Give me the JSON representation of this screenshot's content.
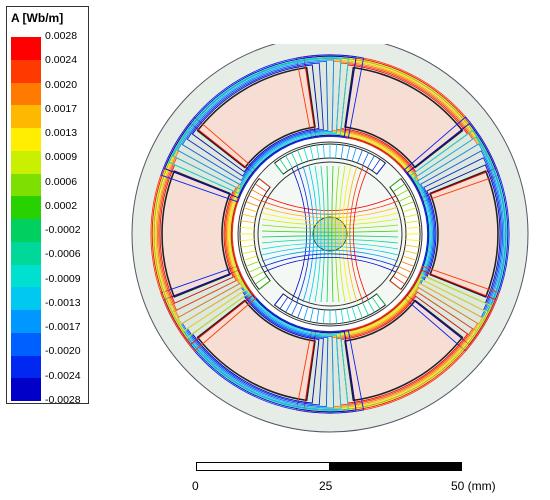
{
  "legend": {
    "title": "A [Wb/m]",
    "values": [
      "0.0028",
      "0.0024",
      "0.0020",
      "0.0017",
      "0.0013",
      "0.0009",
      "0.0006",
      "0.0002",
      "-0.0002",
      "-0.0006",
      "-0.0009",
      "-0.0013",
      "-0.0017",
      "-0.0020",
      "-0.0024",
      "-0.0028"
    ],
    "colors": [
      "#ff0000",
      "#ff3a00",
      "#ff7a00",
      "#ffb800",
      "#ffee00",
      "#c8f000",
      "#7ee000",
      "#28d200",
      "#00d060",
      "#00d89a",
      "#00e0d0",
      "#00c8f0",
      "#0098ff",
      "#0060ff",
      "#0028f0",
      "#0000c8"
    ]
  },
  "scale": {
    "labels": [
      "0",
      "25",
      "50 (mm)"
    ]
  },
  "geometry": {
    "stator_fill": "#e6ede6",
    "coil_fill": "#f7ded4",
    "rotor_fill": "#e8efe8",
    "magnet_count": 4,
    "slot_count": 6
  }
}
